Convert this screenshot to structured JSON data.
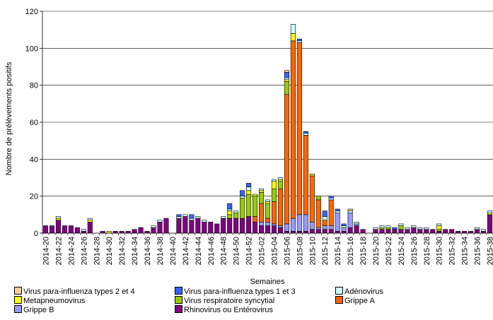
{
  "chart_data": {
    "type": "bar",
    "stacked": true,
    "xlabel": "Semaines",
    "ylabel": "Nombre de prélèvements positifs",
    "ylim": [
      0,
      120
    ],
    "yticks": [
      0,
      20,
      40,
      60,
      80,
      100,
      120
    ],
    "grid": "horizontal",
    "legend_position": "bottom",
    "categories": [
      "2014-20",
      "2014-21",
      "2014-22",
      "2014-23",
      "2014-24",
      "2014-25",
      "2014-26",
      "2014-27",
      "2014-28",
      "2014-29",
      "2014-30",
      "2014-31",
      "2014-32",
      "2014-33",
      "2014-34",
      "2014-35",
      "2014-36",
      "2014-37",
      "2014-38",
      "2014-39",
      "2014-40",
      "2014-41",
      "2014-42",
      "2014-43",
      "2014-44",
      "2014-45",
      "2014-46",
      "2014-47",
      "2014-48",
      "2014-49",
      "2014-50",
      "2014-51",
      "2014-52",
      "2015-01",
      "2015-02",
      "2015-03",
      "2015-04",
      "2015-05",
      "2015-06",
      "2015-07",
      "2015-08",
      "2015-09",
      "2015-10",
      "2015-11",
      "2015-12",
      "2015-13",
      "2015-14",
      "2015-15",
      "2015-16",
      "2015-17",
      "2015-18",
      "2015-19",
      "2015-20",
      "2015-21",
      "2015-22",
      "2015-23",
      "2015-24",
      "2015-25",
      "2015-26",
      "2015-27",
      "2015-28",
      "2015-29",
      "2015-30",
      "2015-31",
      "2015-32",
      "2015-33",
      "2015-34",
      "2015-35",
      "2015-36",
      "2015-37",
      "2015-38"
    ],
    "tick_labels": [
      "2014-20",
      "2014-22",
      "2014-24",
      "2014-26",
      "2014-28",
      "2014-30",
      "2014-32",
      "2014-34",
      "2014-36",
      "2014-38",
      "2014-40",
      "2014-42",
      "2014-44",
      "2014-46",
      "2014-48",
      "2014-50",
      "2014-52",
      "2015-02",
      "2015-04",
      "2015-06",
      "2015-08",
      "2015-10",
      "2015-12",
      "2015-14",
      "2015-16",
      "2015-18",
      "2015-20",
      "2015-22",
      "2015-24",
      "2015-26",
      "2015-28",
      "2015-30",
      "2015-32",
      "2015-34",
      "2015-36",
      "2015-38"
    ],
    "series": [
      {
        "name": "Rhinovirus ou Entérovirus",
        "color": "#800080",
        "values": [
          4,
          4,
          7,
          4,
          4,
          3,
          1,
          6,
          0,
          1,
          0,
          1,
          1,
          1,
          2,
          3,
          1,
          3,
          6,
          8,
          0,
          8,
          9,
          7,
          8,
          6,
          6,
          5,
          8,
          8,
          8,
          8,
          9,
          6,
          4,
          4,
          4,
          3,
          1,
          1,
          1,
          1,
          2,
          2,
          2,
          2,
          1,
          1,
          3,
          4,
          2,
          0,
          2,
          2,
          2,
          2,
          2,
          2,
          3,
          2,
          2,
          2,
          1,
          2,
          2,
          1,
          1,
          1,
          2,
          1,
          10
        ]
      },
      {
        "name": "Grippe B",
        "color": "#9999FF",
        "values": [
          0,
          0,
          0,
          0,
          0,
          0,
          0,
          0,
          0,
          0,
          0,
          0,
          0,
          0,
          0,
          0,
          0,
          0,
          0,
          0,
          0,
          0,
          0,
          0,
          0,
          0,
          0,
          0,
          0,
          0,
          0,
          0,
          0,
          0,
          2,
          2,
          1,
          1,
          4,
          7,
          9,
          9,
          4,
          1,
          2,
          2,
          10,
          2,
          8,
          1,
          0,
          0,
          0,
          0,
          0,
          0,
          0,
          0,
          0,
          0,
          0,
          0,
          0,
          0,
          0,
          0,
          0,
          0,
          0,
          0,
          0
        ]
      },
      {
        "name": "Grippe A",
        "color": "#FF6600",
        "values": [
          0,
          0,
          0,
          0,
          0,
          0,
          0,
          0,
          0,
          0,
          0,
          0,
          0,
          0,
          0,
          0,
          0,
          0,
          0,
          0,
          0,
          0,
          0,
          0,
          0,
          0,
          0,
          0,
          0,
          0,
          0,
          0,
          0,
          3,
          10,
          2,
          12,
          20,
          70,
          96,
          93,
          43,
          25,
          15,
          3,
          14,
          0,
          0,
          0,
          0,
          0,
          0,
          0,
          0,
          0,
          0,
          0,
          0,
          0,
          0,
          0,
          0,
          0,
          0,
          0,
          0,
          0,
          0,
          0,
          0,
          0
        ]
      },
      {
        "name": "Virus respiratoire syncytial",
        "color": "#99CC00",
        "values": [
          0,
          0,
          0,
          0,
          0,
          0,
          0,
          0,
          0,
          0,
          0,
          0,
          0,
          0,
          0,
          0,
          0,
          0,
          0,
          0,
          0,
          0,
          0,
          0,
          0,
          0,
          0,
          0,
          0,
          2,
          3,
          11,
          12,
          11,
          6,
          8,
          7,
          4,
          7,
          0,
          0,
          0,
          0,
          2,
          0,
          0,
          0,
          0,
          0,
          0,
          0,
          0,
          0,
          1,
          1,
          0,
          2,
          0,
          0,
          0,
          0,
          0,
          1,
          0,
          0,
          0,
          0,
          0,
          0,
          0,
          0
        ]
      },
      {
        "name": "Metapneumovirus",
        "color": "#FFFF00",
        "values": [
          0,
          0,
          1,
          0,
          0,
          0,
          0,
          1,
          0,
          0,
          1,
          0,
          0,
          0,
          0,
          0,
          0,
          0,
          0,
          0,
          0,
          0,
          0,
          0,
          0,
          0,
          0,
          0,
          0,
          2,
          0,
          0,
          2,
          1,
          1,
          1,
          4,
          1,
          1,
          4,
          0,
          0,
          1,
          0,
          0,
          0,
          0,
          0,
          0,
          0,
          0,
          0,
          0,
          0,
          0,
          0,
          0,
          0,
          0,
          0,
          0,
          0,
          2,
          0,
          0,
          0,
          0,
          0,
          0,
          0,
          1
        ]
      },
      {
        "name": "Adénovirus",
        "color": "#CCFFFF",
        "values": [
          0,
          0,
          1,
          0,
          0,
          0,
          1,
          1,
          0,
          0,
          0,
          0,
          0,
          0,
          0,
          0,
          0,
          1,
          1,
          0,
          0,
          1,
          1,
          1,
          1,
          1,
          0,
          0,
          1,
          1,
          1,
          1,
          2,
          0,
          1,
          1,
          1,
          1,
          1,
          5,
          1,
          1,
          0,
          0,
          2,
          1,
          1,
          1,
          1,
          1,
          0,
          0,
          1,
          1,
          1,
          0,
          1,
          1,
          1,
          1,
          1,
          0,
          1,
          0,
          0,
          0,
          0,
          0,
          1,
          1,
          1
        ]
      },
      {
        "name": "Virus para-influenza types 1 et 3",
        "color": "#3366FF",
        "values": [
          0,
          0,
          0,
          0,
          0,
          0,
          0,
          0,
          0,
          0,
          0,
          0,
          0,
          0,
          0,
          0,
          0,
          0,
          0,
          0,
          0,
          1,
          0,
          2,
          0,
          0,
          0,
          0,
          0,
          3,
          0,
          3,
          2,
          0,
          0,
          0,
          0,
          0,
          3,
          0,
          1,
          1,
          0,
          0,
          3,
          1,
          1,
          1,
          0,
          0,
          0,
          0,
          0,
          0,
          0,
          1,
          0,
          0,
          0,
          0,
          0,
          0,
          0,
          0,
          0,
          0,
          0,
          0,
          0,
          0,
          0
        ]
      },
      {
        "name": "Virus para-influenza types 2 et 4",
        "color": "#FFCC99",
        "values": [
          0,
          0,
          0,
          0,
          0,
          0,
          0,
          0,
          0,
          0,
          0,
          0,
          0,
          0,
          0,
          0,
          0,
          0,
          0,
          0,
          0,
          0,
          0,
          0,
          0,
          0,
          0,
          0,
          0,
          0,
          0,
          0,
          0,
          0,
          0,
          0,
          0,
          0,
          1,
          0,
          0,
          0,
          0,
          0,
          0,
          0,
          0,
          0,
          1,
          0,
          0,
          0,
          0,
          0,
          0,
          0,
          0,
          0,
          0,
          0,
          0,
          0,
          0,
          0,
          0,
          0,
          0,
          0,
          0,
          0,
          0
        ]
      }
    ]
  },
  "legend": [
    {
      "label": "Virus para-influenza types 2 et 4",
      "color": "#FFCC99"
    },
    {
      "label": "Virus para-influenza types 1 et 3",
      "color": "#3366FF"
    },
    {
      "label": "Adénovirus",
      "color": "#CCFFFF"
    },
    {
      "label": "Metapneumovirus",
      "color": "#FFFF00"
    },
    {
      "label": "Virus respiratoire syncytial",
      "color": "#99CC00"
    },
    {
      "label": "Grippe A",
      "color": "#FF6600"
    },
    {
      "label": "Grippe B",
      "color": "#9999FF"
    },
    {
      "label": "Rhinovirus ou Entérovirus",
      "color": "#800080"
    }
  ]
}
